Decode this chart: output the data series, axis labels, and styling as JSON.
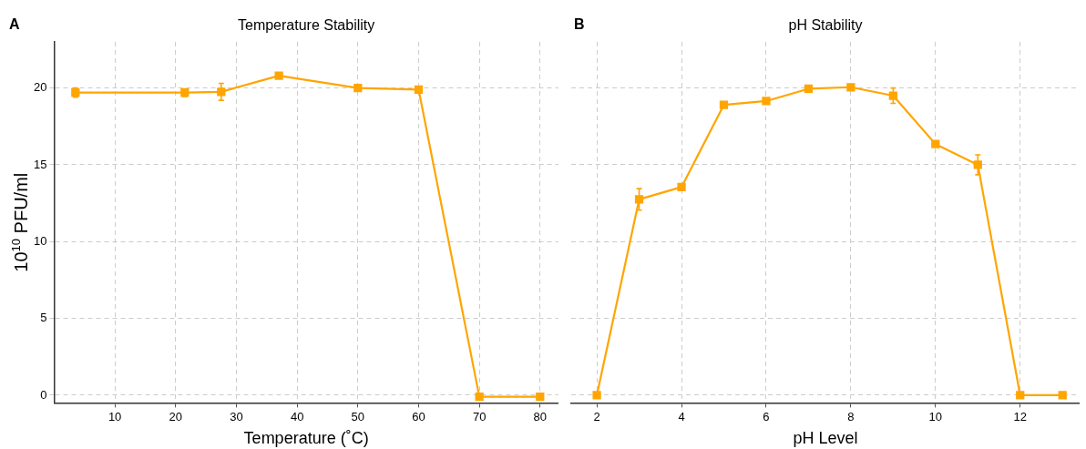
{
  "chart_data": [
    {
      "type": "line",
      "title": "Temperature Stability",
      "xlabel": "Temperature (˚C)",
      "ylabel": "10$^{10}$ PFU/ml",
      "annotations": [
        "A"
      ],
      "x": [
        3.5,
        21.5,
        27.5,
        37,
        50,
        60,
        70,
        80
      ],
      "series": [
        {
          "color": "#ffa500",
          "values": [
            19.7,
            19.7,
            19.75,
            20.8,
            20.0,
            19.9,
            -0.1,
            -0.1
          ],
          "errors": [
            0.3,
            0.25,
            0.55,
            null,
            null,
            null,
            null,
            null
          ]
        }
      ],
      "xlim": [
        0,
        83
      ],
      "xticks": [
        10,
        20,
        30,
        40,
        50,
        60,
        70,
        80
      ],
      "ylim": [
        -0.5,
        23
      ],
      "yticks": [
        0,
        5,
        10,
        15,
        20
      ],
      "grid": true,
      "marker": "square",
      "line_style": "solid"
    },
    {
      "type": "line",
      "title": "pH Stability",
      "xlabel": "pH Level",
      "annotations": [
        "B"
      ],
      "x": [
        2,
        3,
        4,
        5,
        6,
        7,
        8,
        9,
        10,
        11,
        12,
        13
      ],
      "series": [
        {
          "color": "#ffa500",
          "values": [
            0,
            12.75,
            13.55,
            18.9,
            19.15,
            19.95,
            20.05,
            19.5,
            16.35,
            15.0,
            0,
            0
          ],
          "errors": [
            null,
            0.7,
            null,
            null,
            null,
            null,
            null,
            0.5,
            null,
            0.65,
            null,
            null
          ]
        }
      ],
      "xlim": [
        1.4,
        13.4
      ],
      "xticks": [
        2,
        4,
        6,
        8,
        10,
        12
      ],
      "ylim": [
        -0.5,
        23
      ],
      "yticks": [
        0,
        5,
        10,
        15,
        20
      ],
      "tick_labels": "x",
      "grid": true,
      "marker": "square",
      "line_style": "solid"
    }
  ]
}
